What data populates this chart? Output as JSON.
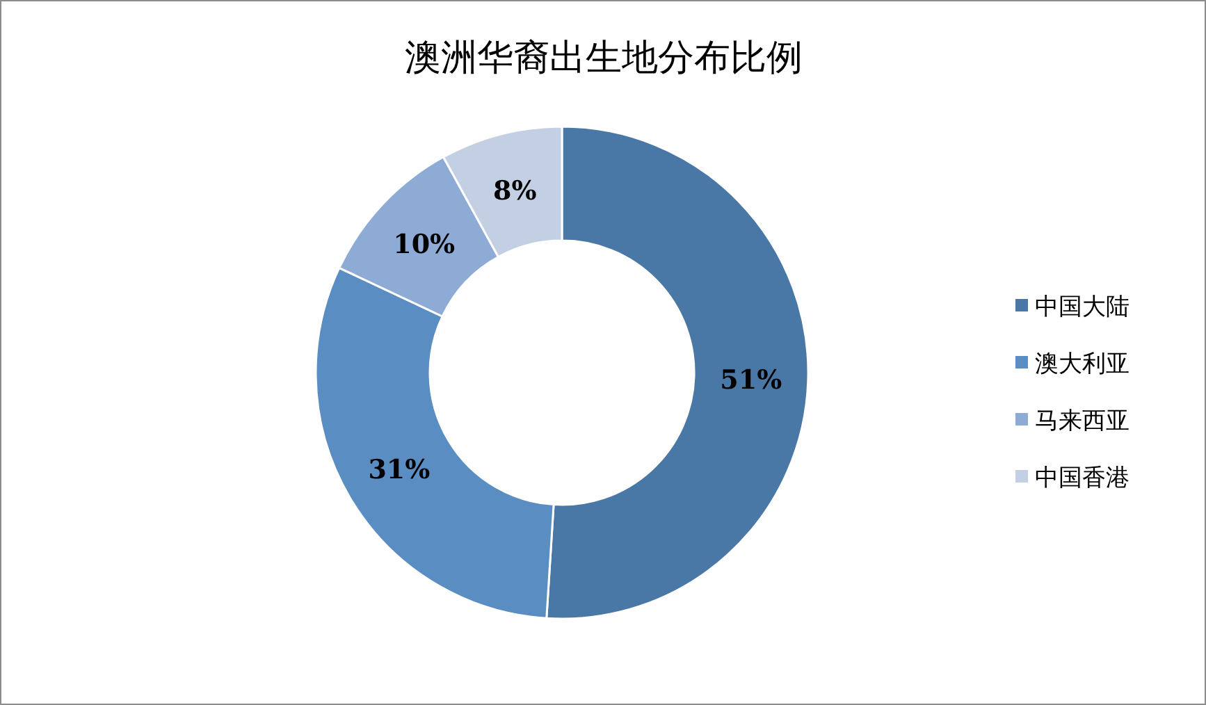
{
  "chart_data": {
    "type": "donut",
    "title": "澳洲华裔出生地分布比例",
    "categories": [
      "中国大陆",
      "澳大利亚",
      "马来西亚",
      "中国香港"
    ],
    "values": [
      51,
      31,
      10,
      8
    ],
    "colors": [
      "#4a78a6",
      "#5a8dc1",
      "#8eabd5",
      "#c3d0e4"
    ],
    "value_labels": [
      "51%",
      "31%",
      "10%",
      "8%"
    ],
    "legend": "right"
  }
}
